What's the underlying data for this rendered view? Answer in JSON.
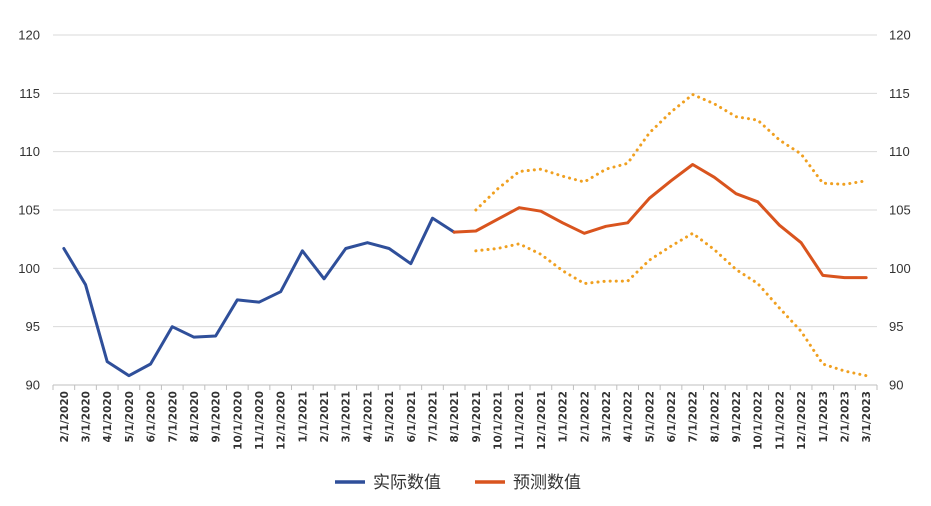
{
  "chart_data": {
    "type": "line",
    "title": "",
    "xlabel": "",
    "ylabel": "",
    "ylim": [
      90,
      120
    ],
    "yticks": [
      90,
      95,
      100,
      105,
      110,
      115,
      120
    ],
    "secondary_yticks": [
      90,
      95,
      100,
      105,
      110,
      115,
      120
    ],
    "grid": "horizontal",
    "legend_position": "bottom",
    "x": [
      "2/1/2020",
      "3/1/2020",
      "4/1/2020",
      "5/1/2020",
      "6/1/2020",
      "7/1/2020",
      "8/1/2020",
      "9/1/2020",
      "10/1/2020",
      "11/1/2020",
      "12/1/2020",
      "1/1/2021",
      "2/1/2021",
      "3/1/2021",
      "4/1/2021",
      "5/1/2021",
      "6/1/2021",
      "7/1/2021",
      "8/1/2021",
      "9/1/2021",
      "10/1/2021",
      "11/1/2021",
      "12/1/2021",
      "1/1/2022",
      "2/1/2022",
      "3/1/2022",
      "4/1/2022",
      "5/1/2022",
      "6/1/2022",
      "7/1/2022",
      "8/1/2022",
      "9/1/2022",
      "10/1/2022",
      "11/1/2022",
      "12/1/2022",
      "1/1/2023",
      "2/1/2023",
      "3/1/2023"
    ],
    "series": [
      {
        "name": "实际数值",
        "color": "#2f4f9a",
        "style": "solid",
        "values": [
          101.7,
          98.6,
          92.0,
          90.8,
          91.8,
          95.0,
          94.1,
          94.2,
          97.3,
          97.1,
          98.0,
          101.5,
          99.1,
          101.7,
          102.2,
          101.7,
          100.4,
          104.3,
          103.1,
          null,
          null,
          null,
          null,
          null,
          null,
          null,
          null,
          null,
          null,
          null,
          null,
          null,
          null,
          null,
          null,
          null,
          null,
          null
        ]
      },
      {
        "name": "预测数值",
        "color": "#d9541e",
        "style": "solid",
        "values": [
          null,
          null,
          null,
          null,
          null,
          null,
          null,
          null,
          null,
          null,
          null,
          null,
          null,
          null,
          null,
          null,
          null,
          null,
          103.1,
          103.2,
          104.2,
          105.2,
          104.9,
          103.9,
          103.0,
          103.6,
          103.9,
          106.0,
          107.5,
          108.9,
          107.8,
          106.4,
          105.7,
          103.7,
          102.2,
          99.4,
          99.2,
          99.2
        ]
      },
      {
        "color": "#f0a020",
        "style": "dotted",
        "values": [
          null,
          null,
          null,
          null,
          null,
          null,
          null,
          null,
          null,
          null,
          null,
          null,
          null,
          null,
          null,
          null,
          null,
          null,
          null,
          105.0,
          106.8,
          108.3,
          108.5,
          107.9,
          107.4,
          108.5,
          109.0,
          111.6,
          113.4,
          114.9,
          114.1,
          113.0,
          112.7,
          111.0,
          109.8,
          107.3,
          107.2,
          107.5
        ]
      },
      {
        "color": "#f0a020",
        "style": "dotted",
        "values": [
          null,
          null,
          null,
          null,
          null,
          null,
          null,
          null,
          null,
          null,
          null,
          null,
          null,
          null,
          null,
          null,
          null,
          null,
          null,
          101.5,
          101.7,
          102.1,
          101.2,
          99.8,
          98.7,
          98.9,
          98.9,
          100.7,
          101.9,
          103.0,
          101.6,
          99.9,
          98.7,
          96.6,
          94.6,
          91.8,
          91.2,
          90.8
        ]
      }
    ]
  }
}
